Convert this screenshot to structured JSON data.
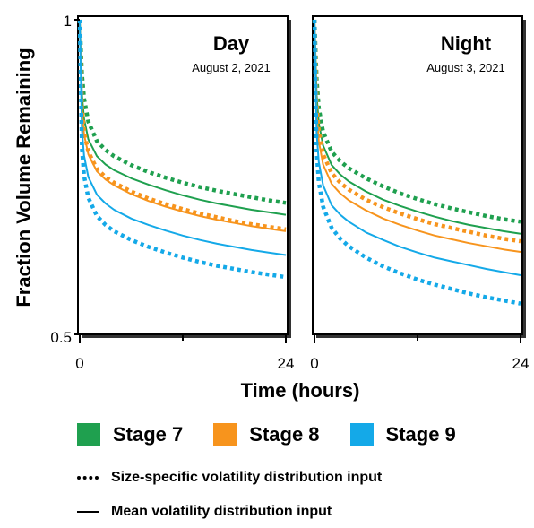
{
  "chart_data": {
    "type": "line",
    "ylabel": "Fraction Volume Remaining",
    "xlabel": "Time (hours)",
    "ylim": [
      0.5,
      1
    ],
    "xlim": [
      0,
      24
    ],
    "yticks": [
      "1",
      "0.5"
    ],
    "xticks": [
      "0",
      "24"
    ],
    "colors": {
      "stage7": "#1fa04f",
      "stage8": "#f7941d",
      "stage9": "#14a9e8"
    },
    "legend": {
      "stages": [
        {
          "key": "stage7",
          "label": "Stage 7",
          "color": "#1fa04f"
        },
        {
          "key": "stage8",
          "label": "Stage 8",
          "color": "#f7941d"
        },
        {
          "key": "stage9",
          "label": "Stage 9",
          "color": "#14a9e8"
        }
      ],
      "dotted_label": "Size-specific volatility distribution input",
      "solid_label": "Mean volatility distribution input"
    },
    "panels": [
      {
        "title": "Day",
        "date": "August 2, 2021",
        "series": [
          {
            "stage": "stage7",
            "style": "dotted",
            "x": [
              0,
              0.25,
              0.5,
              1,
              2,
              3,
              4,
              6,
              8,
              10,
              12,
              14,
              16,
              18,
              20,
              22,
              24
            ],
            "y": [
              1.0,
              0.915,
              0.875,
              0.838,
              0.807,
              0.793,
              0.783,
              0.769,
              0.758,
              0.749,
              0.741,
              0.734,
              0.728,
              0.723,
              0.718,
              0.713,
              0.709
            ]
          },
          {
            "stage": "stage7",
            "style": "solid",
            "x": [
              0,
              0.25,
              0.5,
              1,
              2,
              3,
              4,
              6,
              8,
              10,
              12,
              14,
              16,
              18,
              20,
              22,
              24
            ],
            "y": [
              1.0,
              0.882,
              0.843,
              0.81,
              0.783,
              0.77,
              0.761,
              0.748,
              0.738,
              0.729,
              0.721,
              0.714,
              0.708,
              0.703,
              0.698,
              0.694,
              0.69
            ]
          },
          {
            "stage": "stage8",
            "style": "dotted",
            "x": [
              0,
              0.25,
              0.5,
              1,
              2,
              3,
              4,
              6,
              8,
              10,
              12,
              14,
              16,
              18,
              20,
              22,
              24
            ],
            "y": [
              1.0,
              0.862,
              0.822,
              0.79,
              0.763,
              0.75,
              0.741,
              0.727,
              0.716,
              0.707,
              0.699,
              0.692,
              0.686,
              0.68,
              0.675,
              0.671,
              0.667
            ]
          },
          {
            "stage": "stage8",
            "style": "solid",
            "x": [
              0,
              0.25,
              0.5,
              1,
              2,
              3,
              4,
              6,
              8,
              10,
              12,
              14,
              16,
              18,
              20,
              22,
              24
            ],
            "y": [
              1.0,
              0.858,
              0.818,
              0.786,
              0.759,
              0.746,
              0.737,
              0.723,
              0.712,
              0.703,
              0.695,
              0.688,
              0.682,
              0.677,
              0.672,
              0.668,
              0.664
            ]
          },
          {
            "stage": "stage9",
            "style": "solid",
            "x": [
              0,
              0.25,
              0.5,
              1,
              2,
              3,
              4,
              6,
              8,
              10,
              12,
              14,
              16,
              18,
              20,
              22,
              24
            ],
            "y": [
              1.0,
              0.825,
              0.784,
              0.75,
              0.722,
              0.708,
              0.698,
              0.684,
              0.674,
              0.665,
              0.657,
              0.65,
              0.644,
              0.639,
              0.634,
              0.63,
              0.626
            ]
          },
          {
            "stage": "stage9",
            "style": "dotted",
            "x": [
              0,
              0.25,
              0.5,
              1,
              2,
              3,
              4,
              6,
              8,
              10,
              12,
              14,
              16,
              18,
              20,
              22,
              24
            ],
            "y": [
              1.0,
              0.795,
              0.752,
              0.717,
              0.688,
              0.674,
              0.664,
              0.65,
              0.639,
              0.63,
              0.622,
              0.615,
              0.609,
              0.604,
              0.599,
              0.595,
              0.591
            ]
          }
        ]
      },
      {
        "title": "Night",
        "date": "August 3, 2021",
        "series": [
          {
            "stage": "stage7",
            "style": "dotted",
            "x": [
              0,
              0.25,
              0.5,
              1,
              2,
              3,
              4,
              6,
              8,
              10,
              12,
              14,
              16,
              18,
              20,
              22,
              24
            ],
            "y": [
              1.0,
              0.905,
              0.86,
              0.822,
              0.79,
              0.775,
              0.764,
              0.748,
              0.735,
              0.724,
              0.715,
              0.707,
              0.7,
              0.694,
              0.688,
              0.683,
              0.679
            ]
          },
          {
            "stage": "stage7",
            "style": "solid",
            "x": [
              0,
              0.25,
              0.5,
              1,
              2,
              3,
              4,
              6,
              8,
              10,
              12,
              14,
              16,
              18,
              20,
              22,
              24
            ],
            "y": [
              1.0,
              0.88,
              0.836,
              0.8,
              0.769,
              0.754,
              0.743,
              0.727,
              0.714,
              0.704,
              0.695,
              0.687,
              0.68,
              0.674,
              0.669,
              0.664,
              0.66
            ]
          },
          {
            "stage": "stage8",
            "style": "dotted",
            "x": [
              0,
              0.25,
              0.5,
              1,
              2,
              3,
              4,
              6,
              8,
              10,
              12,
              14,
              16,
              18,
              20,
              22,
              24
            ],
            "y": [
              1.0,
              0.866,
              0.822,
              0.786,
              0.756,
              0.741,
              0.73,
              0.714,
              0.702,
              0.692,
              0.683,
              0.675,
              0.669,
              0.663,
              0.657,
              0.652,
              0.648
            ]
          },
          {
            "stage": "stage8",
            "style": "solid",
            "x": [
              0,
              0.25,
              0.5,
              1,
              2,
              3,
              4,
              6,
              8,
              10,
              12,
              14,
              16,
              18,
              20,
              22,
              24
            ],
            "y": [
              1.0,
              0.852,
              0.807,
              0.77,
              0.739,
              0.724,
              0.713,
              0.697,
              0.684,
              0.674,
              0.665,
              0.657,
              0.651,
              0.645,
              0.64,
              0.635,
              0.631
            ]
          },
          {
            "stage": "stage9",
            "style": "solid",
            "x": [
              0,
              0.25,
              0.5,
              1,
              2,
              3,
              4,
              6,
              8,
              10,
              12,
              14,
              16,
              18,
              20,
              22,
              24
            ],
            "y": [
              1.0,
              0.82,
              0.774,
              0.737,
              0.705,
              0.69,
              0.679,
              0.662,
              0.65,
              0.639,
              0.63,
              0.622,
              0.616,
              0.61,
              0.604,
              0.599,
              0.594
            ]
          },
          {
            "stage": "stage9",
            "style": "dotted",
            "x": [
              0,
              0.25,
              0.5,
              1,
              2,
              3,
              4,
              6,
              8,
              10,
              12,
              14,
              16,
              18,
              20,
              22,
              24
            ],
            "y": [
              1.0,
              0.79,
              0.742,
              0.703,
              0.669,
              0.652,
              0.64,
              0.622,
              0.608,
              0.597,
              0.587,
              0.579,
              0.572,
              0.565,
              0.559,
              0.554,
              0.549
            ]
          }
        ]
      }
    ]
  }
}
